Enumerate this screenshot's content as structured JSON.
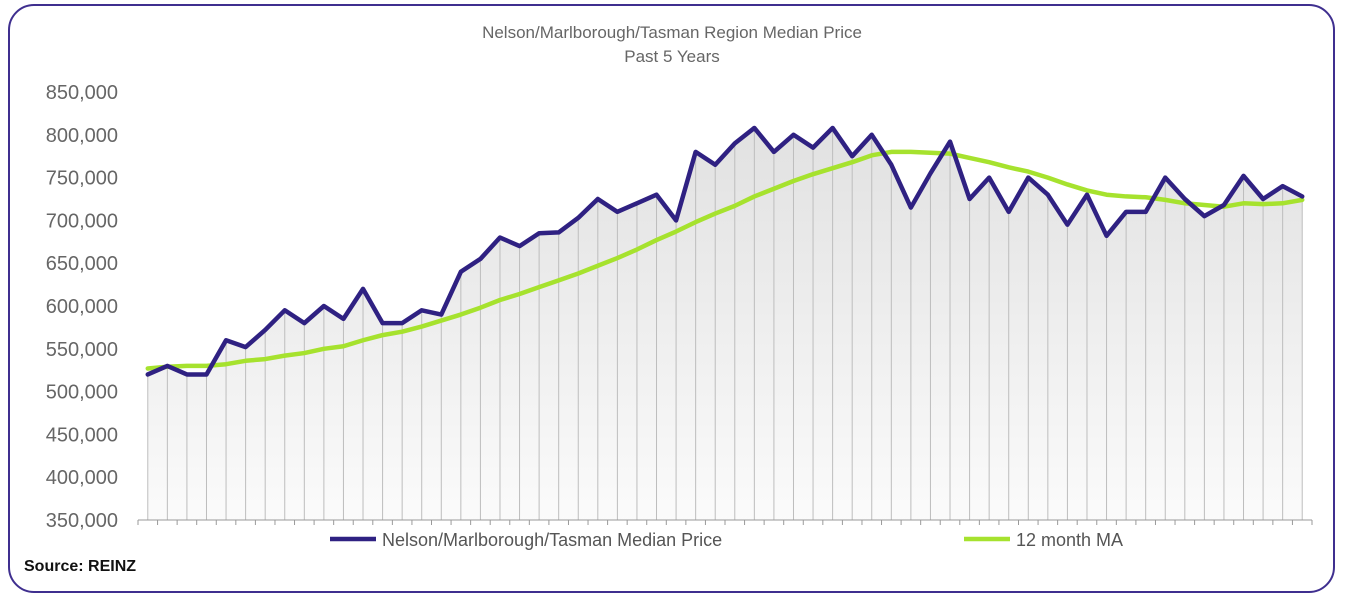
{
  "chart_data": {
    "type": "line",
    "title": "Nelson/Marlborough/Tasman Region Median Price",
    "subtitle": "Past 5 Years",
    "xlabel": "",
    "ylabel": "",
    "ylim": [
      350000,
      850000
    ],
    "ytick_labels": [
      "850,000",
      "800,000",
      "750,000",
      "700,000",
      "650,000",
      "600,000",
      "550,000",
      "500,000",
      "450,000",
      "400,000",
      "350,000"
    ],
    "ytick_values": [
      850000,
      800000,
      750000,
      700000,
      650000,
      600000,
      550000,
      500000,
      450000,
      400000,
      350000
    ],
    "num_points": 60,
    "grid": "vertical lines with shaded area under series",
    "legend": "bottom",
    "series": [
      {
        "name": "Nelson/Marlborough/Tasman Median Price",
        "color": "#2f2182",
        "values": [
          520000,
          530000,
          520000,
          520000,
          560000,
          552000,
          572000,
          595000,
          580000,
          600000,
          585000,
          620000,
          580000,
          580000,
          595000,
          590000,
          640000,
          655000,
          680000,
          670000,
          685000,
          686000,
          703000,
          725000,
          710000,
          720000,
          730000,
          700000,
          780000,
          765000,
          790000,
          808000,
          780000,
          800000,
          785000,
          808000,
          775000,
          800000,
          765000,
          715000,
          755000,
          792000,
          725000,
          750000,
          710000,
          750000,
          730000,
          695000,
          730000,
          682000,
          710000,
          710000,
          750000,
          725000,
          705000,
          718000,
          752000,
          725000,
          740000,
          728000
        ]
      },
      {
        "name": "12 month MA",
        "color": "#a6e22e",
        "values": [
          527000,
          529000,
          530000,
          530000,
          532000,
          536000,
          538000,
          542000,
          545000,
          550000,
          553000,
          560000,
          566000,
          570000,
          576000,
          583000,
          590000,
          598000,
          607000,
          614000,
          622000,
          630000,
          638000,
          647000,
          656000,
          666000,
          677000,
          687000,
          698000,
          708000,
          717000,
          728000,
          737000,
          746000,
          754000,
          761000,
          768000,
          776000,
          780000,
          780000,
          779000,
          778000,
          773000,
          768000,
          762000,
          757000,
          750000,
          742000,
          735000,
          730000,
          728000,
          727000,
          724000,
          720000,
          718000,
          716000,
          720000,
          719000,
          720000,
          724000
        ]
      }
    ]
  },
  "source": "Source: REINZ"
}
